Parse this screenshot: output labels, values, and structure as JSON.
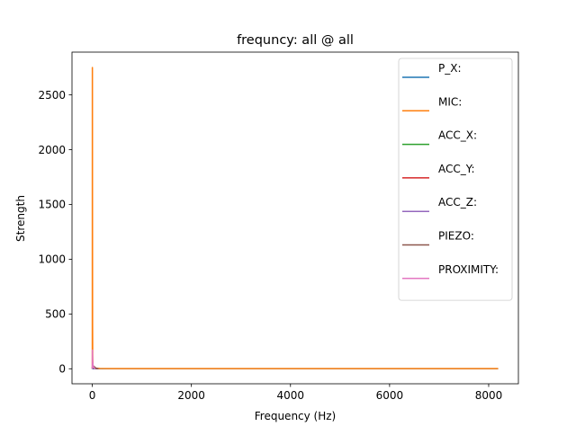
{
  "chart_data": {
    "type": "line",
    "title": "frequncy: all @ all",
    "xlabel": "Frequency (Hz)",
    "ylabel": "Strength",
    "xlim": [
      -410,
      8600
    ],
    "ylim": [
      -137,
      2890
    ],
    "x_ticks": [
      0,
      2000,
      4000,
      6000,
      8000
    ],
    "y_ticks": [
      0,
      500,
      1000,
      1500,
      2000,
      2500
    ],
    "x_tick_labels": [
      "0",
      "2000",
      "4000",
      "6000",
      "8000"
    ],
    "y_tick_labels": [
      "0",
      "500",
      "1000",
      "1500",
      "2000",
      "2500"
    ],
    "grid": false,
    "legend_position": "upper right",
    "series": [
      {
        "name": "P_X:",
        "color": "#1f77b4",
        "x": [
          0,
          5,
          10,
          20,
          40,
          80,
          8192
        ],
        "y": [
          0,
          2,
          1,
          0,
          0,
          0,
          0
        ]
      },
      {
        "name": "MIC:",
        "color": "#ff7f0e",
        "x": [
          0,
          1,
          2,
          3,
          5,
          8,
          12,
          20,
          40,
          80,
          150,
          400,
          1000,
          2000,
          4000,
          6000,
          8192
        ],
        "y": [
          0,
          2750,
          2720,
          1500,
          400,
          100,
          40,
          15,
          8,
          4,
          2,
          1,
          1,
          1,
          1,
          1,
          1
        ]
      },
      {
        "name": "ACC_X:",
        "color": "#2ca02c",
        "x": [
          0,
          5,
          10,
          20,
          40,
          80,
          120
        ],
        "y": [
          0,
          30,
          20,
          10,
          5,
          2,
          0
        ]
      },
      {
        "name": "ACC_Y:",
        "color": "#d62728",
        "x": [
          0,
          5,
          10,
          20,
          40,
          80,
          120
        ],
        "y": [
          0,
          25,
          15,
          8,
          4,
          2,
          0
        ]
      },
      {
        "name": "ACC_Z:",
        "color": "#9467bd",
        "x": [
          0,
          5,
          10,
          20,
          40,
          80,
          120
        ],
        "y": [
          0,
          40,
          30,
          15,
          8,
          3,
          0
        ]
      },
      {
        "name": "PIEZO:",
        "color": "#8c564b",
        "x": [
          0,
          10,
          20,
          40,
          60,
          80,
          100,
          120
        ],
        "y": [
          0,
          15,
          25,
          18,
          10,
          5,
          2,
          0
        ]
      },
      {
        "name": "PROXIMITY:",
        "color": "#e377c2",
        "x": [
          0,
          2,
          4,
          8,
          15,
          25,
          40,
          60
        ],
        "y": [
          0,
          170,
          120,
          60,
          30,
          15,
          5,
          0
        ]
      }
    ]
  }
}
